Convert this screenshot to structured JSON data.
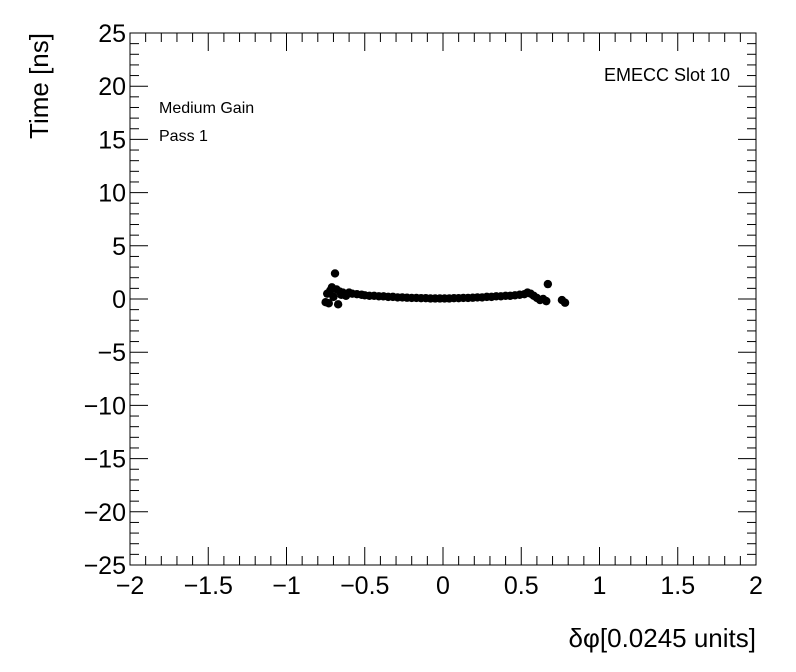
{
  "chart_data": {
    "type": "scatter",
    "title": "",
    "xlabel": "δφ[0.0245 units]",
    "ylabel": "Time [ns]",
    "xlim": [
      -2,
      2
    ],
    "ylim": [
      -25,
      25
    ],
    "x_major_ticks": [
      -2,
      -1.5,
      -1,
      -0.5,
      0,
      0.5,
      1,
      1.5,
      2
    ],
    "x_tick_labels": [
      "−2",
      "−1.5",
      "−1",
      "−0.5",
      "0",
      "0.5",
      "1",
      "1.5",
      "2"
    ],
    "y_major_ticks": [
      -25,
      -20,
      -15,
      -10,
      -5,
      0,
      5,
      10,
      15,
      20,
      25
    ],
    "y_tick_labels": [
      "−25",
      "−20",
      "−15",
      "−10",
      "−5",
      "0",
      "5",
      "10",
      "15",
      "20",
      "25"
    ],
    "grid": false,
    "marker_color": "#000000",
    "annotations": {
      "label_1": "EMECC Slot 10",
      "label_2": "Medium Gain",
      "label_3": "Pass 1"
    },
    "points": [
      [
        -0.75,
        -0.3
      ],
      [
        -0.74,
        0.5
      ],
      [
        -0.73,
        -0.4
      ],
      [
        -0.72,
        0.8
      ],
      [
        -0.71,
        1.1
      ],
      [
        -0.7,
        0.2
      ],
      [
        -0.69,
        2.4
      ],
      [
        -0.68,
        0.9
      ],
      [
        -0.67,
        -0.5
      ],
      [
        -0.66,
        0.7
      ],
      [
        -0.65,
        0.4
      ],
      [
        -0.64,
        0.6
      ],
      [
        -0.62,
        0.3
      ],
      [
        -0.6,
        0.6
      ],
      [
        -0.58,
        0.5
      ],
      [
        -0.55,
        0.45
      ],
      [
        -0.52,
        0.4
      ],
      [
        -0.5,
        0.35
      ],
      [
        -0.47,
        0.3
      ],
      [
        -0.44,
        0.3
      ],
      [
        -0.41,
        0.25
      ],
      [
        -0.38,
        0.25
      ],
      [
        -0.35,
        0.2
      ],
      [
        -0.32,
        0.2
      ],
      [
        -0.29,
        0.15
      ],
      [
        -0.26,
        0.15
      ],
      [
        -0.23,
        0.12
      ],
      [
        -0.2,
        0.1
      ],
      [
        -0.17,
        0.1
      ],
      [
        -0.14,
        0.08
      ],
      [
        -0.11,
        0.08
      ],
      [
        -0.08,
        0.05
      ],
      [
        -0.05,
        0.05
      ],
      [
        -0.02,
        0.05
      ],
      [
        0.01,
        0.05
      ],
      [
        0.04,
        0.05
      ],
      [
        0.07,
        0.08
      ],
      [
        0.1,
        0.08
      ],
      [
        0.13,
        0.1
      ],
      [
        0.16,
        0.1
      ],
      [
        0.19,
        0.12
      ],
      [
        0.22,
        0.15
      ],
      [
        0.25,
        0.15
      ],
      [
        0.28,
        0.2
      ],
      [
        0.31,
        0.2
      ],
      [
        0.34,
        0.25
      ],
      [
        0.37,
        0.25
      ],
      [
        0.4,
        0.3
      ],
      [
        0.43,
        0.3
      ],
      [
        0.46,
        0.35
      ],
      [
        0.49,
        0.4
      ],
      [
        0.52,
        0.45
      ],
      [
        0.54,
        0.6
      ],
      [
        0.56,
        0.5
      ],
      [
        0.58,
        0.3
      ],
      [
        0.6,
        0.1
      ],
      [
        0.62,
        -0.1
      ],
      [
        0.64,
        0.0
      ],
      [
        0.66,
        -0.2
      ],
      [
        0.67,
        1.4
      ],
      [
        0.76,
        -0.1
      ],
      [
        0.78,
        -0.35
      ]
    ]
  }
}
